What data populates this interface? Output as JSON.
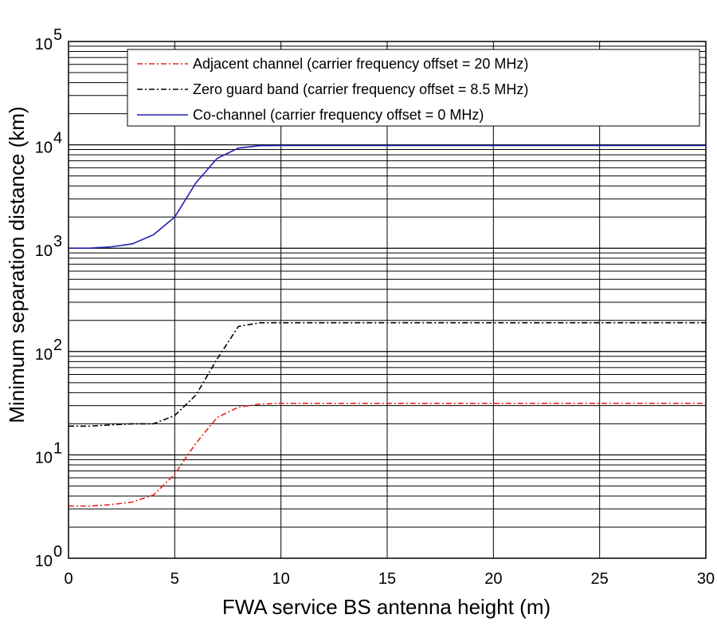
{
  "chart_data": {
    "type": "line",
    "title": "",
    "xlabel": "FWA service BS antenna height (m)",
    "ylabel": "Minimum separation distance (km)",
    "xlim": [
      0,
      30
    ],
    "ylim": [
      1,
      100000
    ],
    "yscale": "log",
    "grid": true,
    "legend_position": "top",
    "x_ticks": [
      0,
      5,
      10,
      15,
      20,
      25,
      30
    ],
    "y_ticks": [
      {
        "base": "10",
        "exp": "0",
        "value": 1
      },
      {
        "base": "10",
        "exp": "1",
        "value": 10
      },
      {
        "base": "10",
        "exp": "2",
        "value": 100
      },
      {
        "base": "10",
        "exp": "3",
        "value": 1000
      },
      {
        "base": "10",
        "exp": "4",
        "value": 10000
      },
      {
        "base": "10",
        "exp": "5",
        "value": 100000
      }
    ],
    "series": [
      {
        "name": "Adjacent channel (carrier frequency offset = 20 MHz)",
        "color": "#e8231b",
        "dash": "dash-dot",
        "x": [
          0,
          1,
          2,
          3,
          4,
          5,
          6,
          7,
          8,
          9,
          10,
          30
        ],
        "y": [
          3.2,
          3.2,
          3.3,
          3.5,
          4.1,
          6.5,
          13,
          23,
          29,
          31,
          31.5,
          31.5
        ]
      },
      {
        "name": "Zero guard band (carrier frequency offset = 8.5 MHz)",
        "color": "#000000",
        "dash": "dash-dot",
        "x": [
          0,
          1,
          2,
          3,
          4,
          5,
          6,
          7,
          8,
          9,
          10,
          30
        ],
        "y": [
          19,
          19,
          19.5,
          20,
          20,
          24,
          38,
          85,
          175,
          190,
          190,
          190
        ]
      },
      {
        "name": "Co-channel (carrier frequency offset = 0 MHz)",
        "color": "#1f1fb4",
        "dash": "solid",
        "x": [
          0,
          1,
          2,
          3,
          4,
          5,
          6,
          7,
          8,
          9,
          10,
          30
        ],
        "y": [
          1000,
          1000,
          1030,
          1100,
          1350,
          2000,
          4300,
          7400,
          9300,
          9800,
          9850,
          9850
        ]
      }
    ]
  }
}
